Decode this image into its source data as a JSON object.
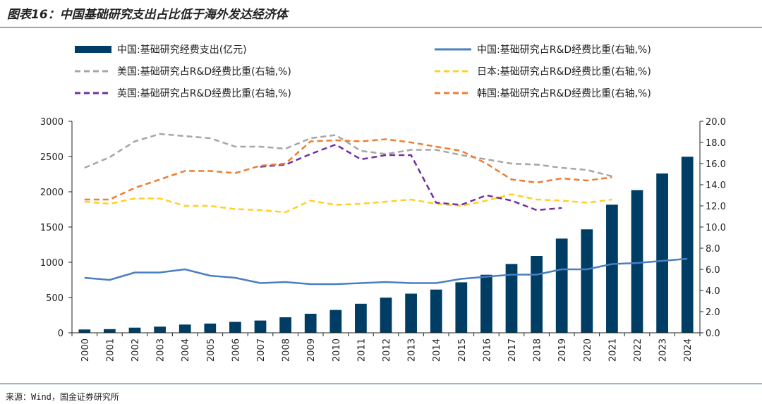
{
  "title": "图表16：中国基础研究支出占比低于海外发达经济体",
  "source": "来源：Wind，国金证券研究所",
  "colors": {
    "china_bar": "#003d64",
    "china_line": "#4a7fc1",
    "usa": "#a6a6a6",
    "japan": "#ffd21f",
    "uk": "#7030a0",
    "korea": "#ed7d31"
  },
  "chart_data": {
    "type": "bar+line",
    "categories": [
      "2000",
      "2001",
      "2002",
      "2003",
      "2004",
      "2005",
      "2006",
      "2007",
      "2008",
      "2009",
      "2010",
      "2011",
      "2012",
      "2013",
      "2014",
      "2015",
      "2016",
      "2017",
      "2018",
      "2019",
      "2020",
      "2021",
      "2022",
      "2023",
      "2024"
    ],
    "left_axis": {
      "ylim": [
        0,
        3000
      ],
      "ticks": [
        "0",
        "500",
        "1000",
        "1500",
        "2000",
        "2500",
        "3000"
      ]
    },
    "right_axis": {
      "ylim": [
        0,
        20
      ],
      "ticks": [
        "0.0",
        "2.0",
        "4.0",
        "6.0",
        "8.0",
        "10.0",
        "12.0",
        "14.0",
        "16.0",
        "18.0",
        "20.0"
      ]
    },
    "series": [
      {
        "name": "中国:基础研究经费支出(亿元)",
        "kind": "bar",
        "axis": "left",
        "values": [
          47,
          52,
          73,
          87,
          117,
          131,
          155,
          174,
          220,
          270,
          324,
          412,
          499,
          555,
          613,
          716,
          823,
          976,
          1090,
          1336,
          1467,
          1817,
          2023,
          2259,
          2497
        ]
      },
      {
        "name": "中国:基础研究占R&D经费比重(右轴,%)",
        "kind": "line",
        "axis": "right",
        "dash": false,
        "color_key": "china_line",
        "values": [
          5.2,
          5.0,
          5.7,
          5.7,
          6.0,
          5.4,
          5.2,
          4.7,
          4.8,
          4.6,
          4.6,
          4.7,
          4.8,
          4.7,
          4.7,
          5.1,
          5.3,
          5.5,
          5.5,
          6.0,
          6.0,
          6.5,
          6.6,
          6.8,
          7.0
        ]
      },
      {
        "name": "美国:基础研究占R&D经费比重(右轴,%)",
        "kind": "line",
        "axis": "right",
        "dash": true,
        "color_key": "usa",
        "values": [
          15.6,
          16.6,
          18.1,
          18.8,
          18.6,
          18.4,
          17.6,
          17.6,
          17.4,
          18.4,
          18.7,
          17.2,
          16.9,
          17.3,
          17.3,
          16.8,
          16.4,
          16.0,
          15.9,
          15.6,
          15.4,
          14.8,
          null,
          null,
          null
        ]
      },
      {
        "name": "日本:基础研究占R&D经费比重(右轴,%)",
        "kind": "line",
        "axis": "right",
        "dash": true,
        "color_key": "japan",
        "values": [
          12.4,
          12.2,
          12.7,
          12.7,
          12.0,
          12.0,
          11.7,
          11.6,
          11.4,
          12.5,
          12.1,
          12.2,
          12.4,
          12.6,
          12.2,
          12.0,
          12.5,
          13.1,
          12.6,
          12.5,
          12.3,
          12.6,
          null,
          null,
          null
        ]
      },
      {
        "name": "英国:基础研究占R&D经费比重(右轴,%)",
        "kind": "line",
        "axis": "right",
        "dash": true,
        "color_key": "uk",
        "values": [
          null,
          null,
          null,
          null,
          null,
          null,
          null,
          15.7,
          15.9,
          16.9,
          17.8,
          16.4,
          16.8,
          16.8,
          12.3,
          12.1,
          13.0,
          12.5,
          11.6,
          11.8,
          null,
          null,
          null,
          null,
          null
        ]
      },
      {
        "name": "韩国:基础研究占R&D经费比重(右轴,%)",
        "kind": "line",
        "axis": "right",
        "dash": true,
        "color_key": "korea",
        "values": [
          12.6,
          12.6,
          13.7,
          14.5,
          15.3,
          15.3,
          15.1,
          15.8,
          16.0,
          18.1,
          18.2,
          18.1,
          18.3,
          18.0,
          17.6,
          17.2,
          16.0,
          14.5,
          14.2,
          14.6,
          14.4,
          14.7,
          null,
          null,
          null
        ]
      }
    ]
  }
}
